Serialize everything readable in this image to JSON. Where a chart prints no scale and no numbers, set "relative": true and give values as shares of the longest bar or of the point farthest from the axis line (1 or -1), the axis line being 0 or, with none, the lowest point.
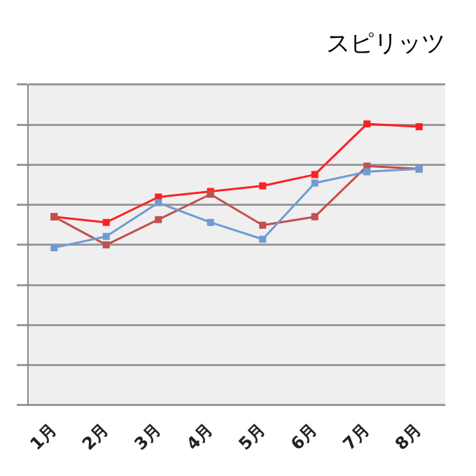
{
  "chart_data": {
    "type": "line",
    "title": "スピリッツ",
    "relative": true,
    "categories": [
      "1月",
      "2月",
      "3月",
      "4月",
      "5月",
      "6月",
      "7月",
      "8月"
    ],
    "series": [
      {
        "color": "#6f9bd1",
        "values": [
          0.56,
          0.6,
          0.72,
          0.65,
          0.59,
          0.79,
          0.83,
          0.84
        ]
      },
      {
        "color": "#c0504d",
        "values": [
          0.67,
          0.57,
          0.66,
          0.75,
          0.64,
          0.67,
          0.85,
          0.84
        ]
      },
      {
        "color": "#ff2020",
        "values": [
          0.67,
          0.65,
          0.74,
          0.76,
          0.78,
          0.82,
          1,
          0.99
        ]
      }
    ],
    "grid": "y",
    "marker": "square",
    "line_style": "solid"
  }
}
